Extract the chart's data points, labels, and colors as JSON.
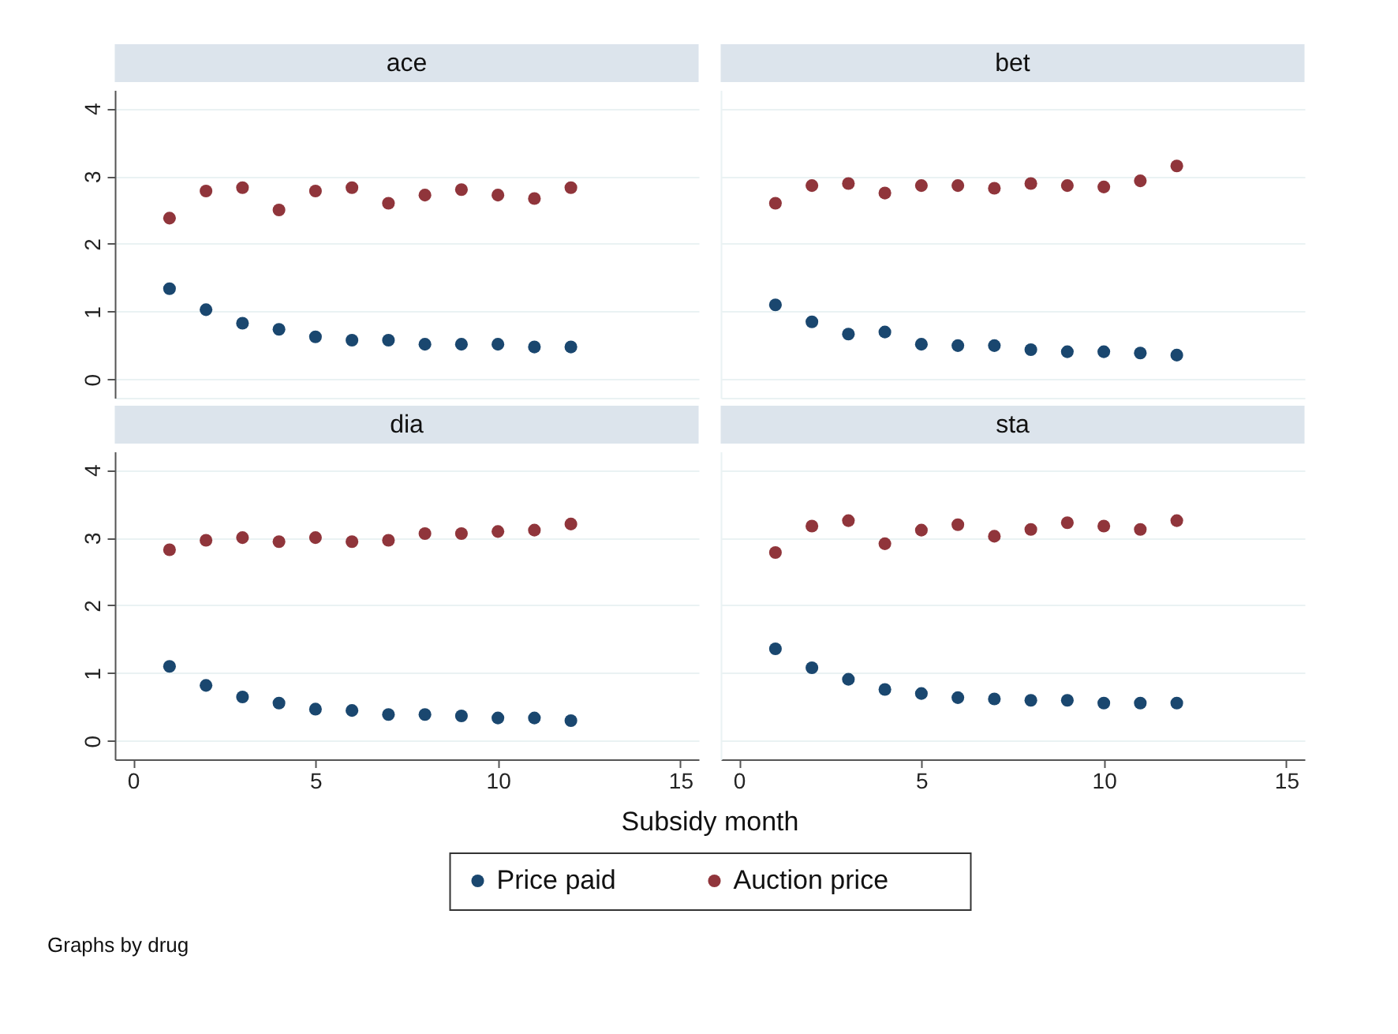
{
  "chart_data": [
    {
      "type": "scatter",
      "title": "ace",
      "x": [
        1,
        2,
        3,
        4,
        5,
        6,
        7,
        8,
        9,
        10,
        11,
        12
      ],
      "xlim": [
        -0.5,
        15.5
      ],
      "ylim": [
        -0.27,
        4.27
      ],
      "xticks": [
        0,
        5,
        10,
        15
      ],
      "yticks": [
        0,
        1,
        2,
        3,
        4
      ],
      "tick_labels": "y",
      "grid": "y",
      "legend": "bottom",
      "marker": "circle",
      "series": [
        {
          "name": "Price paid",
          "color": "#1a476f",
          "values": [
            1.34,
            1.03,
            0.83,
            0.74,
            0.63,
            0.58,
            0.58,
            0.52,
            0.52,
            0.52,
            0.48,
            0.48
          ]
        },
        {
          "name": "Auction price",
          "color": "#90353b",
          "values": [
            2.38,
            2.78,
            2.83,
            2.5,
            2.78,
            2.83,
            2.6,
            2.72,
            2.8,
            2.72,
            2.67,
            2.83
          ]
        }
      ]
    },
    {
      "type": "scatter",
      "title": "bet",
      "x": [
        1,
        2,
        3,
        4,
        5,
        6,
        7,
        8,
        9,
        10,
        11,
        12
      ],
      "xlim": [
        -0.5,
        15.5
      ],
      "ylim": [
        -0.27,
        4.27
      ],
      "xticks": [
        0,
        5,
        10,
        15
      ],
      "yticks": [
        0,
        1,
        2,
        3,
        4
      ],
      "tick_labels": false,
      "grid": "y",
      "marker": "circle",
      "series": [
        {
          "name": "Price paid",
          "color": "#1a476f",
          "values": [
            1.1,
            0.85,
            0.67,
            0.7,
            0.52,
            0.5,
            0.5,
            0.44,
            0.41,
            0.41,
            0.39,
            0.36
          ]
        },
        {
          "name": "Auction price",
          "color": "#90353b",
          "values": [
            2.6,
            2.86,
            2.89,
            2.75,
            2.86,
            2.86,
            2.82,
            2.89,
            2.86,
            2.84,
            2.93,
            3.15
          ]
        }
      ]
    },
    {
      "type": "scatter",
      "title": "dia",
      "x": [
        1,
        2,
        3,
        4,
        5,
        6,
        7,
        8,
        9,
        10,
        11,
        12
      ],
      "xlim": [
        -0.5,
        15.5
      ],
      "ylim": [
        -0.27,
        4.27
      ],
      "xticks": [
        0,
        5,
        10,
        15
      ],
      "yticks": [
        0,
        1,
        2,
        3,
        4
      ],
      "grid": "y",
      "marker": "circle",
      "series": [
        {
          "name": "Price paid",
          "color": "#1a476f",
          "values": [
            1.1,
            0.82,
            0.65,
            0.56,
            0.47,
            0.45,
            0.39,
            0.39,
            0.37,
            0.34,
            0.34,
            0.3
          ]
        },
        {
          "name": "Auction price",
          "color": "#90353b",
          "values": [
            2.82,
            2.96,
            3.0,
            2.94,
            3.0,
            2.94,
            2.96,
            3.06,
            3.06,
            3.09,
            3.11,
            3.2
          ]
        }
      ]
    },
    {
      "type": "scatter",
      "title": "sta",
      "x": [
        1,
        2,
        3,
        4,
        5,
        6,
        7,
        8,
        9,
        10,
        11,
        12
      ],
      "xlim": [
        -0.5,
        15.5
      ],
      "ylim": [
        -0.27,
        4.27
      ],
      "xticks": [
        0,
        5,
        10,
        15
      ],
      "yticks": [
        0,
        1,
        2,
        3,
        4
      ],
      "tick_labels": "x",
      "grid": "y",
      "marker": "circle",
      "xlabel": "Subsidy month",
      "annotations": [
        "Graphs by drug"
      ],
      "series": [
        {
          "name": "Price paid",
          "color": "#1a476f",
          "values": [
            1.36,
            1.08,
            0.91,
            0.76,
            0.7,
            0.64,
            0.62,
            0.6,
            0.6,
            0.56,
            0.56,
            0.56
          ]
        },
        {
          "name": "Auction price",
          "color": "#90353b",
          "values": [
            2.78,
            3.17,
            3.25,
            2.91,
            3.11,
            3.19,
            3.02,
            3.12,
            3.22,
            3.17,
            3.12,
            3.25
          ]
        }
      ]
    }
  ]
}
